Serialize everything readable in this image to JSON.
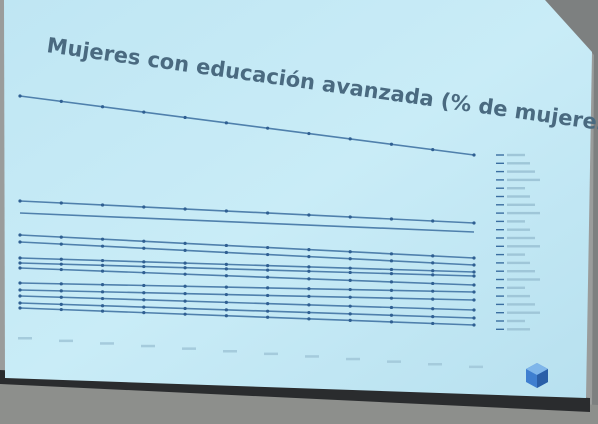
{
  "slide": {
    "title": "Mujeres con educación avanzada (% de mujeres)"
  }
}
